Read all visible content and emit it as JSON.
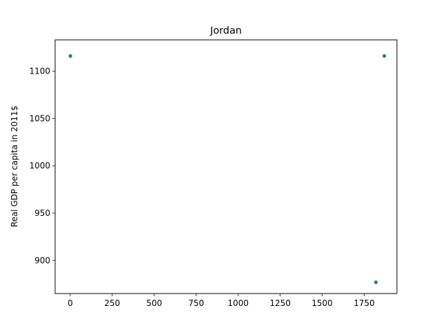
{
  "chart_data": {
    "type": "scatter",
    "title": "Jordan",
    "xlabel": "",
    "ylabel": "Real GDP per capita in 2011$",
    "xlim": [
      -90,
      1945
    ],
    "ylim": [
      865,
      1133
    ],
    "xticks": [
      0,
      250,
      500,
      750,
      1000,
      1250,
      1500,
      1750
    ],
    "yticks": [
      900,
      950,
      1000,
      1050,
      1100
    ],
    "grid": false,
    "color": "#1f77b4",
    "series": [
      {
        "points": [
          {
            "x": 1,
            "y": 1116
          },
          {
            "x": 1820,
            "y": 877
          },
          {
            "x": 1870,
            "y": 1116
          }
        ]
      }
    ]
  }
}
